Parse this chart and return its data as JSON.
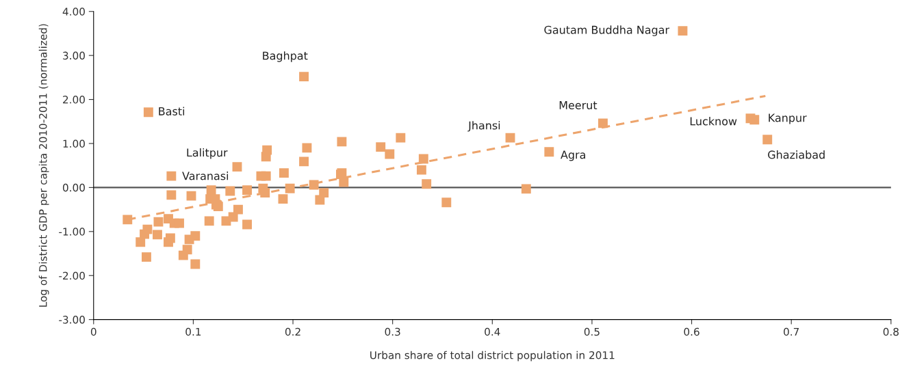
{
  "chart_data": {
    "type": "scatter",
    "xlabel": "Urban share of total district population in 2011",
    "ylabel": "Log of District GDP per capita 2010-2011 (normalized)",
    "xlim": [
      0,
      0.8
    ],
    "ylim": [
      -3,
      4
    ],
    "xticks": [
      0,
      0.1,
      0.2,
      0.3,
      0.4,
      0.5,
      0.6,
      0.7,
      0.8
    ],
    "yticks": [
      {
        "value": -3,
        "label": "-3.00"
      },
      {
        "value": -2,
        "label": "-2.00"
      },
      {
        "value": -1,
        "label": "-1.00"
      },
      {
        "value": 0,
        "label": "0.00"
      },
      {
        "value": 1,
        "label": "1.00"
      },
      {
        "value": 2,
        "label": "2.00"
      },
      {
        "value": 3,
        "label": "3.00"
      },
      {
        "value": 4,
        "label": "4.00"
      }
    ],
    "grid": false,
    "legend": false,
    "marker": "square",
    "ref_lines": [
      {
        "axis": "y",
        "value": 0,
        "color": "#555555"
      }
    ],
    "series": [
      {
        "type": "scatter",
        "color": "#eda46c",
        "x": [
          0.034,
          0.047,
          0.051,
          0.054,
          0.053,
          0.055,
          0.065,
          0.064,
          0.075,
          0.075,
          0.077,
          0.078,
          0.078,
          0.081,
          0.086,
          0.09,
          0.094,
          0.096,
          0.098,
          0.102,
          0.102,
          0.116,
          0.117,
          0.118,
          0.122,
          0.123,
          0.125,
          0.133,
          0.137,
          0.14,
          0.144,
          0.145,
          0.154,
          0.154,
          0.168,
          0.17,
          0.172,
          0.173,
          0.173,
          0.174,
          0.19,
          0.191,
          0.197,
          0.211,
          0.211,
          0.214,
          0.221,
          0.227,
          0.231,
          0.248,
          0.249,
          0.249,
          0.251,
          0.288,
          0.297,
          0.308,
          0.329,
          0.331,
          0.334,
          0.354,
          0.418,
          0.434,
          0.457,
          0.511,
          0.591,
          0.659,
          0.663,
          0.676
        ],
        "values": [
          -0.73,
          -1.24,
          -1.06,
          -0.95,
          -1.58,
          1.71,
          -0.78,
          -1.07,
          -0.71,
          -1.24,
          -1.15,
          0.26,
          -0.17,
          -0.81,
          -0.81,
          -1.54,
          -1.41,
          -1.18,
          -0.19,
          -1.1,
          -1.74,
          -0.76,
          -0.26,
          -0.06,
          -0.26,
          -0.39,
          -0.43,
          -0.76,
          -0.08,
          -0.67,
          0.47,
          -0.5,
          -0.06,
          -0.84,
          0.26,
          -0.02,
          -0.12,
          0.26,
          0.7,
          0.85,
          -0.26,
          0.33,
          -0.02,
          0.59,
          2.52,
          0.9,
          0.06,
          -0.28,
          -0.12,
          0.3,
          1.04,
          0.33,
          0.12,
          0.92,
          0.76,
          1.13,
          0.4,
          0.65,
          0.08,
          -0.34,
          1.13,
          -0.03,
          0.81,
          1.46,
          3.56,
          1.57,
          1.54,
          1.09
        ]
      },
      {
        "type": "line",
        "color": "#eda46c",
        "line_style": "dashed",
        "marker": "none",
        "x": [
          0.034,
          0.674
        ],
        "values": [
          -0.73,
          2.08
        ]
      }
    ],
    "annotations": [
      {
        "text": "Gautam Buddha Nagar",
        "x": 0.591,
        "y": 3.56
      },
      {
        "text": "Baghpat",
        "x": 0.211,
        "y": 2.52
      },
      {
        "text": "Basti",
        "x": 0.055,
        "y": 1.71
      },
      {
        "text": "Lalitpur",
        "x": 0.144,
        "y": 0.47
      },
      {
        "text": "Varanasi",
        "x": 0.118,
        "y": -0.06
      },
      {
        "text": "Jhansi",
        "x": 0.418,
        "y": 1.13
      },
      {
        "text": "Meerut",
        "x": 0.511,
        "y": 1.46
      },
      {
        "text": "Agra",
        "x": 0.457,
        "y": 0.81
      },
      {
        "text": "Lucknow",
        "x": 0.659,
        "y": 1.57
      },
      {
        "text": "Kanpur",
        "x": 0.663,
        "y": 1.54
      },
      {
        "text": "Ghaziabad",
        "x": 0.676,
        "y": 1.09
      }
    ]
  }
}
